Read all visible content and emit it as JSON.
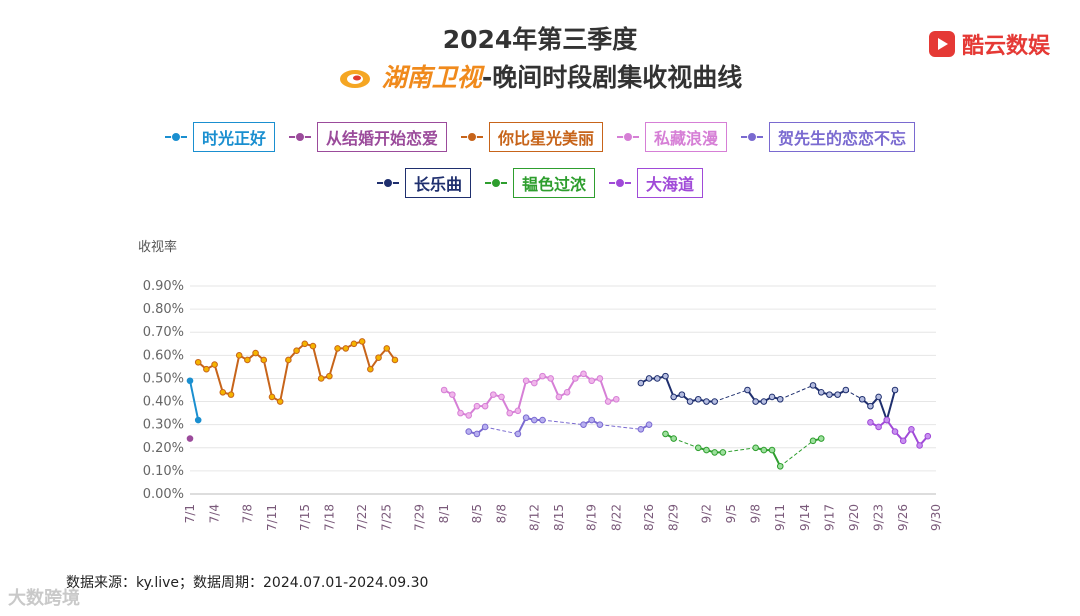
{
  "header": {
    "title_line1": "2024年第三季度",
    "title_channel": "湖南卫视",
    "title_rest": "-晚间时段剧集收视曲线",
    "brand": "酷云数娱",
    "brand_color": "#e53935",
    "channel_logo_icon": "hunan-tv-logo-icon"
  },
  "footer": {
    "source": "数据来源：ky.live；数据周期：2024.07.01-2024.09.30",
    "watermark": "大数跨境"
  },
  "chart_data": {
    "type": "line",
    "ylabel": "收视率",
    "ylim": [
      0,
      0.9
    ],
    "yticks": [
      "0.00%",
      "0.10%",
      "0.20%",
      "0.30%",
      "0.40%",
      "0.50%",
      "0.60%",
      "0.70%",
      "0.80%",
      "0.90%"
    ],
    "xticks": [
      "7/1",
      "7/4",
      "7/8",
      "7/11",
      "7/15",
      "7/18",
      "7/22",
      "7/25",
      "7/29",
      "8/1",
      "8/5",
      "8/8",
      "8/12",
      "8/15",
      "8/19",
      "8/22",
      "8/26",
      "8/29",
      "9/2",
      "9/5",
      "9/8",
      "9/11",
      "9/14",
      "9/17",
      "9/20",
      "9/23",
      "9/26",
      "9/30"
    ],
    "grid": "horizontal",
    "legend_position": "top",
    "series": [
      {
        "name": "时光正好",
        "color": "#1a8fd0",
        "dashed": false,
        "points": [
          [
            "2024-07-01",
            0.49
          ],
          [
            "2024-07-02",
            0.32
          ]
        ]
      },
      {
        "name": "从结婚开始恋爱",
        "color": "#9b4b9b",
        "dashed": false,
        "points": [
          [
            "2024-07-01",
            0.24
          ]
        ]
      },
      {
        "name": "你比星光美丽",
        "color": "#c7641a",
        "marker": "#f5b400",
        "dashed": false,
        "points": [
          [
            "2024-07-02",
            0.57
          ],
          [
            "2024-07-03",
            0.54
          ],
          [
            "2024-07-04",
            0.56
          ],
          [
            "2024-07-05",
            0.44
          ],
          [
            "2024-07-06",
            0.43
          ],
          [
            "2024-07-07",
            0.6
          ],
          [
            "2024-07-08",
            0.58
          ],
          [
            "2024-07-09",
            0.61
          ],
          [
            "2024-07-10",
            0.58
          ],
          [
            "2024-07-11",
            0.42
          ],
          [
            "2024-07-12",
            0.4
          ],
          [
            "2024-07-13",
            0.58
          ],
          [
            "2024-07-14",
            0.62
          ],
          [
            "2024-07-15",
            0.65
          ],
          [
            "2024-07-16",
            0.64
          ],
          [
            "2024-07-17",
            0.5
          ],
          [
            "2024-07-18",
            0.51
          ],
          [
            "2024-07-19",
            0.63
          ],
          [
            "2024-07-20",
            0.63
          ],
          [
            "2024-07-21",
            0.65
          ],
          [
            "2024-07-22",
            0.66
          ],
          [
            "2024-07-23",
            0.54
          ],
          [
            "2024-07-24",
            0.59
          ],
          [
            "2024-07-25",
            0.63
          ],
          [
            "2024-07-26",
            0.58
          ]
        ]
      },
      {
        "name": "私藏浪漫",
        "color": "#d67fd6",
        "marker": "#f0b6ea",
        "dashed": false,
        "points": [
          [
            "2024-08-01",
            0.45
          ],
          [
            "2024-08-02",
            0.43
          ],
          [
            "2024-08-03",
            0.35
          ],
          [
            "2024-08-04",
            0.34
          ],
          [
            "2024-08-05",
            0.38
          ],
          [
            "2024-08-06",
            0.38
          ],
          [
            "2024-08-07",
            0.43
          ],
          [
            "2024-08-08",
            0.42
          ],
          [
            "2024-08-09",
            0.35
          ],
          [
            "2024-08-10",
            0.36
          ],
          [
            "2024-08-11",
            0.49
          ],
          [
            "2024-08-12",
            0.48
          ],
          [
            "2024-08-13",
            0.51
          ],
          [
            "2024-08-14",
            0.5
          ],
          [
            "2024-08-15",
            0.42
          ],
          [
            "2024-08-16",
            0.44
          ],
          [
            "2024-08-17",
            0.5
          ],
          [
            "2024-08-18",
            0.52
          ],
          [
            "2024-08-19",
            0.49
          ],
          [
            "2024-08-20",
            0.5
          ],
          [
            "2024-08-21",
            0.4
          ],
          [
            "2024-08-22",
            0.41
          ]
        ]
      },
      {
        "name": "贺先生的恋恋不忘",
        "color": "#7a6ad0",
        "marker": "#b8b0f0",
        "dashed": true,
        "points": [
          [
            "2024-08-04",
            0.27
          ],
          [
            "2024-08-05",
            0.26
          ],
          [
            "2024-08-06",
            0.29
          ],
          [
            "2024-08-10",
            0.26
          ],
          [
            "2024-08-11",
            0.33
          ],
          [
            "2024-08-12",
            0.32
          ],
          [
            "2024-08-13",
            0.32
          ],
          [
            "2024-08-18",
            0.3
          ],
          [
            "2024-08-19",
            0.32
          ],
          [
            "2024-08-20",
            0.3
          ],
          [
            "2024-08-25",
            0.28
          ],
          [
            "2024-08-26",
            0.3
          ]
        ]
      },
      {
        "name": "长乐曲",
        "color": "#1f2f6e",
        "marker": "#b5bde0",
        "dashed": true,
        "points": [
          [
            "2024-08-25",
            0.48
          ],
          [
            "2024-08-26",
            0.5
          ],
          [
            "2024-08-27",
            0.5
          ],
          [
            "2024-08-28",
            0.51
          ],
          [
            "2024-08-29",
            0.42
          ],
          [
            "2024-08-30",
            0.43
          ],
          [
            "2024-08-31",
            0.4
          ],
          [
            "2024-09-01",
            0.41
          ],
          [
            "2024-09-02",
            0.4
          ],
          [
            "2024-09-03",
            0.4
          ],
          [
            "2024-09-07",
            0.45
          ],
          [
            "2024-09-08",
            0.4
          ],
          [
            "2024-09-09",
            0.4
          ],
          [
            "2024-09-10",
            0.42
          ],
          [
            "2024-09-11",
            0.41
          ],
          [
            "2024-09-15",
            0.47
          ],
          [
            "2024-09-16",
            0.44
          ],
          [
            "2024-09-17",
            0.43
          ],
          [
            "2024-09-18",
            0.43
          ],
          [
            "2024-09-19",
            0.45
          ],
          [
            "2024-09-21",
            0.41
          ],
          [
            "2024-09-22",
            0.38
          ],
          [
            "2024-09-23",
            0.42
          ],
          [
            "2024-09-24",
            0.32
          ],
          [
            "2024-09-25",
            0.45
          ]
        ]
      },
      {
        "name": "韫色过浓",
        "color": "#2e9e2e",
        "marker": "#9ee09e",
        "dashed": true,
        "points": [
          [
            "2024-08-28",
            0.26
          ],
          [
            "2024-08-29",
            0.24
          ],
          [
            "2024-09-01",
            0.2
          ],
          [
            "2024-09-02",
            0.19
          ],
          [
            "2024-09-03",
            0.18
          ],
          [
            "2024-09-04",
            0.18
          ],
          [
            "2024-09-08",
            0.2
          ],
          [
            "2024-09-09",
            0.19
          ],
          [
            "2024-09-10",
            0.19
          ],
          [
            "2024-09-11",
            0.12
          ],
          [
            "2024-09-15",
            0.23
          ],
          [
            "2024-09-16",
            0.24
          ]
        ]
      },
      {
        "name": "大海道",
        "color": "#a04ad8",
        "marker": "#c890f0",
        "dashed": false,
        "points": [
          [
            "2024-09-22",
            0.31
          ],
          [
            "2024-09-23",
            0.29
          ],
          [
            "2024-09-24",
            0.32
          ],
          [
            "2024-09-25",
            0.27
          ],
          [
            "2024-09-26",
            0.23
          ],
          [
            "2024-09-27",
            0.28
          ],
          [
            "2024-09-28",
            0.21
          ],
          [
            "2024-09-29",
            0.25
          ]
        ]
      }
    ]
  }
}
